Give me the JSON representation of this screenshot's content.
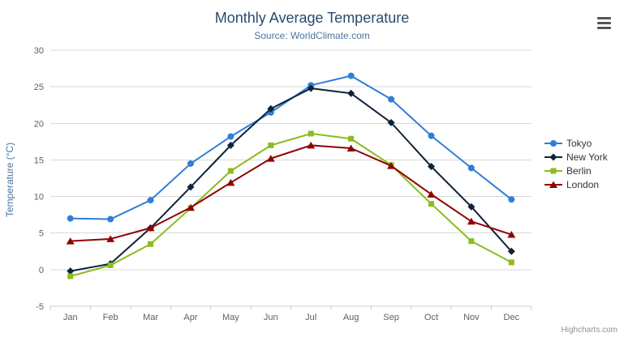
{
  "header": {
    "title": "Monthly Average Temperature",
    "subtitle": "Source: WorldClimate.com"
  },
  "credits": "Highcharts.com",
  "export_menu_icon": "hamburger-icon",
  "chart_data": {
    "type": "line",
    "title": "Monthly Average Temperature",
    "subtitle": "Source: WorldClimate.com",
    "xlabel": "",
    "ylabel": "Temperature (°C)",
    "categories": [
      "Jan",
      "Feb",
      "Mar",
      "Apr",
      "May",
      "Jun",
      "Jul",
      "Aug",
      "Sep",
      "Oct",
      "Nov",
      "Dec"
    ],
    "yticks": [
      -5,
      0,
      5,
      10,
      15,
      20,
      25,
      30
    ],
    "ylim": [
      -5,
      30
    ],
    "grid": true,
    "legend_position": "right",
    "series": [
      {
        "name": "Tokyo",
        "color": "#2f7ed8",
        "marker": "circle",
        "values": [
          7.0,
          6.9,
          9.5,
          14.5,
          18.2,
          21.5,
          25.2,
          26.5,
          23.3,
          18.3,
          13.9,
          9.6
        ]
      },
      {
        "name": "New York",
        "color": "#0d233a",
        "marker": "diamond",
        "values": [
          -0.2,
          0.8,
          5.7,
          11.3,
          17.0,
          22.0,
          24.8,
          24.1,
          20.1,
          14.1,
          8.6,
          2.5
        ]
      },
      {
        "name": "Berlin",
        "color": "#8bbc21",
        "marker": "square",
        "values": [
          -0.9,
          0.6,
          3.5,
          8.4,
          13.5,
          17.0,
          18.6,
          17.9,
          14.3,
          9.0,
          3.9,
          1.0
        ]
      },
      {
        "name": "London",
        "color": "#910000",
        "marker": "triangle",
        "values": [
          3.9,
          4.2,
          5.7,
          8.5,
          11.9,
          15.2,
          17.0,
          16.6,
          14.2,
          10.3,
          6.6,
          4.8
        ]
      }
    ]
  }
}
